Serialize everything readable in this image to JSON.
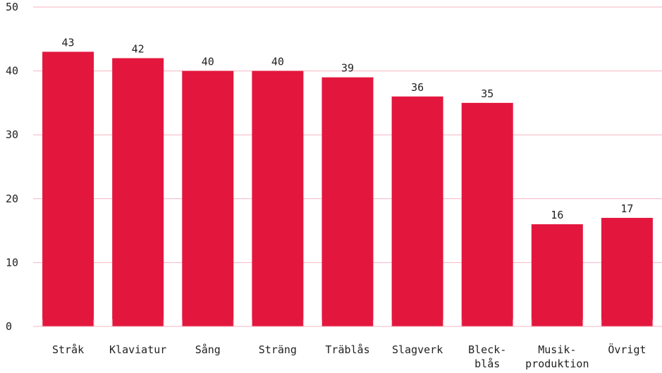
{
  "chart_data": {
    "type": "bar",
    "categories": [
      "Stråk",
      "Klaviatur",
      "Sång",
      "Sträng",
      "Träblås",
      "Slagverk",
      "Bleck-blås",
      "Musik-produktion",
      "Övrigt"
    ],
    "category_lines": [
      [
        "Stråk"
      ],
      [
        "Klaviatur"
      ],
      [
        "Sång"
      ],
      [
        "Sträng"
      ],
      [
        "Träblås"
      ],
      [
        "Slagverk"
      ],
      [
        "Bleck-",
        "blås"
      ],
      [
        "Musik-",
        "produktion"
      ],
      [
        "Övrigt"
      ]
    ],
    "values": [
      43,
      42,
      40,
      40,
      39,
      36,
      35,
      16,
      17
    ],
    "data_labels": [
      "43",
      "42",
      "40",
      "40",
      "39",
      "36",
      "35",
      "16",
      "17"
    ],
    "yticks": [
      "0",
      "10",
      "20",
      "30",
      "40",
      "50"
    ],
    "ylim": [
      0,
      50
    ],
    "grid": true,
    "title": "",
    "xlabel": "",
    "ylabel": "",
    "colors": {
      "bar": "#e3173e",
      "grid": "#f4b6c2",
      "axis": "#f4b6c2",
      "text": "#222222"
    }
  }
}
